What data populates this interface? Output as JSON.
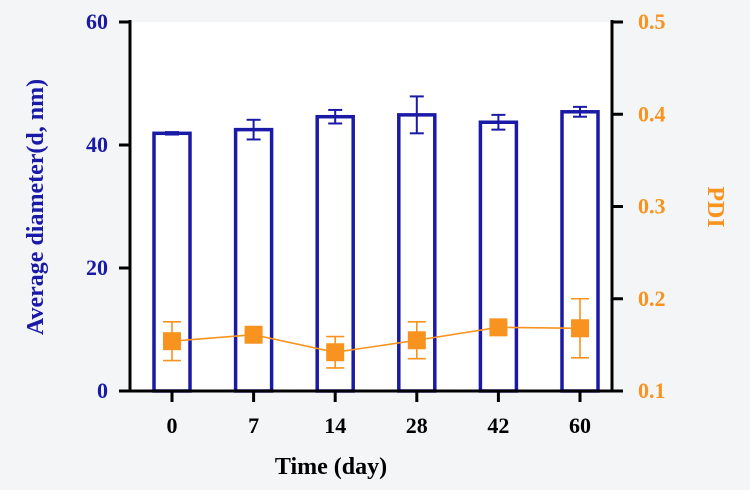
{
  "colors": {
    "left_axis": "#1a1aa6",
    "bar": "#1a1aa6",
    "bar_fill": "#ffffff",
    "pdi": "#f7931e",
    "axis": "#000000",
    "background": "#f4f5f7",
    "plot_background": "#ffffff"
  },
  "chart_data": {
    "type": "bar",
    "title": "",
    "xlabel": "Time (day)",
    "ylabel": "Average diameter(d, nm)",
    "y2label": "PDI",
    "categories": [
      "0",
      "7",
      "14",
      "28",
      "42",
      "60"
    ],
    "ylim": [
      0,
      60
    ],
    "y2lim": [
      0.1,
      0.5
    ],
    "yticks": [
      "0",
      "20",
      "40",
      "60"
    ],
    "y2ticks": [
      "0.1",
      "0.2",
      "0.3",
      "0.4",
      "0.5"
    ],
    "series": [
      {
        "name": "Average diameter",
        "kind": "bar",
        "axis": "left",
        "values": [
          41.9,
          42.5,
          44.6,
          44.9,
          43.7,
          45.4
        ],
        "errors": [
          0.2,
          1.6,
          1.1,
          3.0,
          1.2,
          0.8
        ]
      },
      {
        "name": "PDI",
        "kind": "line",
        "marker": "square",
        "axis": "right",
        "values": [
          0.154,
          0.161,
          0.142,
          0.155,
          0.169,
          0.168
        ],
        "errors": [
          0.021,
          0.003,
          0.017,
          0.02,
          0.004,
          0.032
        ]
      }
    ]
  }
}
